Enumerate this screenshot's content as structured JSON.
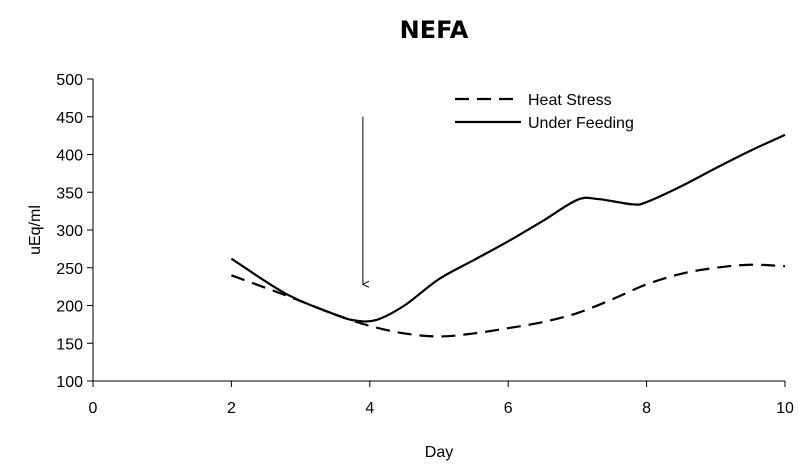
{
  "chart_data": {
    "type": "line",
    "title": "NEFA",
    "xlabel": "Day",
    "ylabel": "uEq/ml",
    "xlim": [
      0,
      10
    ],
    "ylim": [
      100,
      500
    ],
    "xticks": [
      0,
      2,
      4,
      6,
      8,
      10
    ],
    "yticks": [
      100,
      150,
      200,
      250,
      300,
      350,
      400,
      450,
      500
    ],
    "grid": false,
    "legend_position": "top-right",
    "series": [
      {
        "name": "Heat Stress",
        "line_style": "dashed",
        "color": "#000000",
        "points": [
          {
            "x": 2.0,
            "y": 240
          },
          {
            "x": 2.8,
            "y": 213
          },
          {
            "x": 3.5,
            "y": 188
          },
          {
            "x": 4.0,
            "y": 173
          },
          {
            "x": 4.5,
            "y": 163
          },
          {
            "x": 5.0,
            "y": 159
          },
          {
            "x": 5.5,
            "y": 163
          },
          {
            "x": 6.0,
            "y": 170
          },
          {
            "x": 6.5,
            "y": 178
          },
          {
            "x": 7.0,
            "y": 190
          },
          {
            "x": 7.5,
            "y": 208
          },
          {
            "x": 8.0,
            "y": 228
          },
          {
            "x": 8.5,
            "y": 242
          },
          {
            "x": 9.0,
            "y": 250
          },
          {
            "x": 9.5,
            "y": 254
          },
          {
            "x": 10.0,
            "y": 252
          }
        ]
      },
      {
        "name": "Under Feeding",
        "line_style": "solid",
        "color": "#000000",
        "points": [
          {
            "x": 2.0,
            "y": 262
          },
          {
            "x": 2.8,
            "y": 215
          },
          {
            "x": 3.5,
            "y": 188
          },
          {
            "x": 3.8,
            "y": 180
          },
          {
            "x": 4.1,
            "y": 181
          },
          {
            "x": 4.5,
            "y": 200
          },
          {
            "x": 5.0,
            "y": 235
          },
          {
            "x": 5.5,
            "y": 260
          },
          {
            "x": 6.0,
            "y": 285
          },
          {
            "x": 6.5,
            "y": 312
          },
          {
            "x": 7.0,
            "y": 340
          },
          {
            "x": 7.3,
            "y": 341
          },
          {
            "x": 7.8,
            "y": 334
          },
          {
            "x": 8.0,
            "y": 337
          },
          {
            "x": 8.5,
            "y": 358
          },
          {
            "x": 9.0,
            "y": 382
          },
          {
            "x": 9.5,
            "y": 405
          },
          {
            "x": 10.0,
            "y": 426
          }
        ]
      }
    ],
    "annotations": [
      {
        "type": "arrow",
        "x": 3.9,
        "y_start": 450,
        "y_end": 228,
        "direction": "down"
      }
    ]
  }
}
